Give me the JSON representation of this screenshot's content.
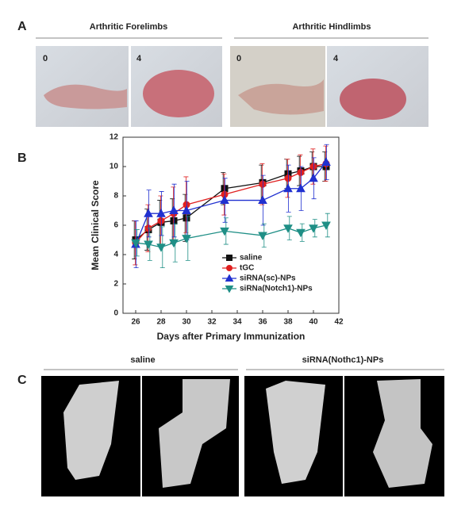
{
  "panels": {
    "a": {
      "letter": "A",
      "forelimbs": "Arthritic Forelimbs",
      "hindlimbs": "Arthritic Hindlimbs",
      "days": [
        "0",
        "4",
        "0",
        "4"
      ]
    },
    "b": {
      "letter": "B"
    },
    "c": {
      "letter": "C",
      "left": "saline",
      "right": "siRNA(Nothc1)-NPs"
    }
  },
  "chart_data": {
    "type": "line",
    "x_label": "Days after Primary Immunization",
    "y_label": "Mean Clinical Score",
    "x": [
      26,
      27,
      28,
      29,
      30,
      33,
      36,
      38,
      39,
      40,
      41
    ],
    "xlim": [
      25,
      42
    ],
    "xticks": [
      26,
      28,
      30,
      32,
      34,
      36,
      38,
      40,
      42
    ],
    "ylim": [
      0,
      12
    ],
    "yticks": [
      0,
      2,
      4,
      6,
      8,
      10,
      12
    ],
    "legend": "lower center",
    "series": [
      {
        "name": "saline",
        "color": "#111111",
        "marker": "square",
        "values": [
          5.0,
          5.7,
          6.2,
          6.3,
          6.5,
          8.5,
          8.9,
          9.5,
          9.7,
          10.0,
          10.0
        ],
        "errors": [
          1.3,
          1.4,
          1.5,
          1.5,
          1.6,
          1.1,
          1.2,
          1.0,
          1.0,
          1.0,
          1.0
        ]
      },
      {
        "name": "tGC",
        "color": "#e02020",
        "marker": "circle",
        "values": [
          4.8,
          5.8,
          6.3,
          6.8,
          7.4,
          8.1,
          8.8,
          9.2,
          9.6,
          10.0,
          10.2
        ],
        "errors": [
          1.5,
          1.6,
          1.7,
          1.8,
          1.9,
          1.4,
          1.4,
          1.3,
          1.2,
          1.2,
          1.2
        ]
      },
      {
        "name": "siRNA(sc)-NPs",
        "color": "#2030d0",
        "marker": "triangle",
        "values": [
          4.7,
          6.8,
          6.8,
          7.0,
          7.0,
          7.7,
          7.7,
          8.5,
          8.5,
          9.2,
          10.3
        ],
        "errors": [
          1.6,
          1.6,
          1.5,
          1.8,
          2.0,
          1.5,
          1.7,
          1.6,
          1.5,
          1.4,
          1.2
        ]
      },
      {
        "name": "siRNa(Notch1)-NPs",
        "color": "#1f8f86",
        "marker": "triangle-down",
        "values": [
          4.8,
          4.7,
          4.5,
          4.8,
          5.1,
          5.6,
          5.3,
          5.8,
          5.5,
          5.8,
          6.0
        ],
        "errors": [
          0.9,
          1.1,
          1.4,
          1.3,
          1.5,
          0.9,
          0.8,
          0.8,
          0.6,
          0.6,
          0.8
        ]
      }
    ]
  }
}
